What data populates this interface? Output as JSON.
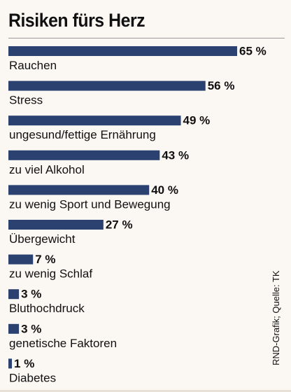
{
  "title": "Risiken fürs Herz",
  "credit": "RND-Grafik; Quelle: TK",
  "colors": {
    "bar": "#2b4170",
    "text": "#111111",
    "background": "#fbf8f3"
  },
  "chart_data": {
    "type": "bar",
    "orientation": "horizontal",
    "title": "Risiken fürs Herz",
    "categories": [
      "Rauchen",
      "Stress",
      "ungesund/fettige Ernährung",
      "zu viel Alkohol",
      "zu wenig Sport und Bewegung",
      "Übergewicht",
      "zu wenig Schlaf",
      "Bluthochdruck",
      "genetische Faktoren",
      "Diabetes"
    ],
    "values": [
      65,
      56,
      49,
      43,
      40,
      27,
      7,
      3,
      3,
      1
    ],
    "value_labels": [
      "65 %",
      "56 %",
      "49 %",
      "43 %",
      "40 %",
      "27 %",
      "7 %",
      "3 %",
      "3 %",
      "1 %"
    ],
    "unit": "%"
  }
}
